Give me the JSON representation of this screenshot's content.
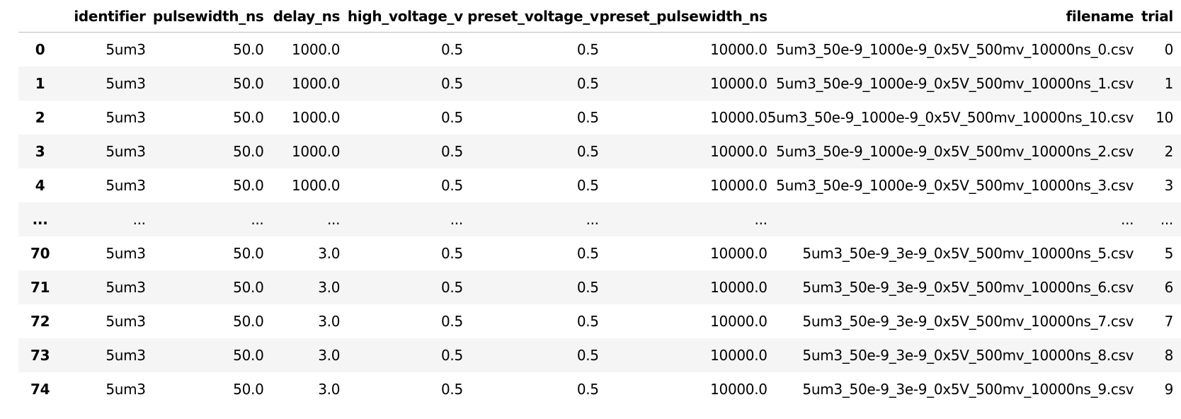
{
  "table": {
    "index_header": "",
    "columns": [
      "identifier",
      "pulsewidth_ns",
      "delay_ns",
      "high_voltage_v",
      "preset_voltage_v",
      "preset_pulsewidth_ns",
      "filename",
      "trial"
    ],
    "rows": [
      [
        "0",
        "5um3",
        "50.0",
        "1000.0",
        "0.5",
        "0.5",
        "10000.0",
        "5um3_50e-9_1000e-9_0x5V_500mv_10000ns_0.csv",
        "0"
      ],
      [
        "1",
        "5um3",
        "50.0",
        "1000.0",
        "0.5",
        "0.5",
        "10000.0",
        "5um3_50e-9_1000e-9_0x5V_500mv_10000ns_1.csv",
        "1"
      ],
      [
        "2",
        "5um3",
        "50.0",
        "1000.0",
        "0.5",
        "0.5",
        "10000.0",
        "5um3_50e-9_1000e-9_0x5V_500mv_10000ns_10.csv",
        "10"
      ],
      [
        "3",
        "5um3",
        "50.0",
        "1000.0",
        "0.5",
        "0.5",
        "10000.0",
        "5um3_50e-9_1000e-9_0x5V_500mv_10000ns_2.csv",
        "2"
      ],
      [
        "4",
        "5um3",
        "50.0",
        "1000.0",
        "0.5",
        "0.5",
        "10000.0",
        "5um3_50e-9_1000e-9_0x5V_500mv_10000ns_3.csv",
        "3"
      ],
      [
        "...",
        "...",
        "...",
        "...",
        "...",
        "...",
        "...",
        "...",
        "..."
      ],
      [
        "70",
        "5um3",
        "50.0",
        "3.0",
        "0.5",
        "0.5",
        "10000.0",
        "5um3_50e-9_3e-9_0x5V_500mv_10000ns_5.csv",
        "5"
      ],
      [
        "71",
        "5um3",
        "50.0",
        "3.0",
        "0.5",
        "0.5",
        "10000.0",
        "5um3_50e-9_3e-9_0x5V_500mv_10000ns_6.csv",
        "6"
      ],
      [
        "72",
        "5um3",
        "50.0",
        "3.0",
        "0.5",
        "0.5",
        "10000.0",
        "5um3_50e-9_3e-9_0x5V_500mv_10000ns_7.csv",
        "7"
      ],
      [
        "73",
        "5um3",
        "50.0",
        "3.0",
        "0.5",
        "0.5",
        "10000.0",
        "5um3_50e-9_3e-9_0x5V_500mv_10000ns_8.csv",
        "8"
      ],
      [
        "74",
        "5um3",
        "50.0",
        "3.0",
        "0.5",
        "0.5",
        "10000.0",
        "5um3_50e-9_3e-9_0x5V_500mv_10000ns_9.csv",
        "9"
      ]
    ]
  },
  "colors": {
    "stripe": "#f5f5f5",
    "header_rule": "#bdbdbd",
    "text": "#000000"
  }
}
